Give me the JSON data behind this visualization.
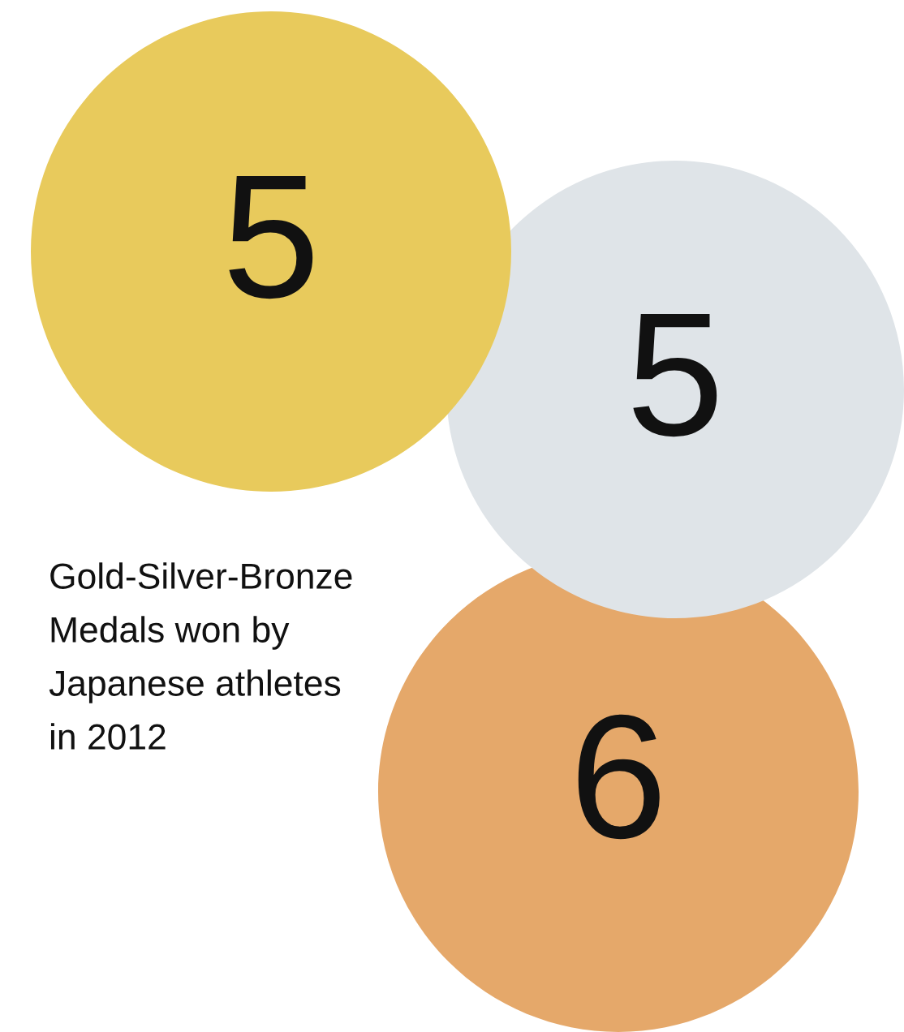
{
  "chart_data": {
    "type": "other",
    "title": "Gold-Silver-Bronze Medals won by Japanese athletes in 2012",
    "categories": [
      null,
      null,
      null
    ],
    "values": [
      5,
      5,
      6
    ],
    "colors": [
      "#e8ca5c",
      "#dfe4e8",
      "#e5a86a"
    ],
    "data_labels": true
  }
}
